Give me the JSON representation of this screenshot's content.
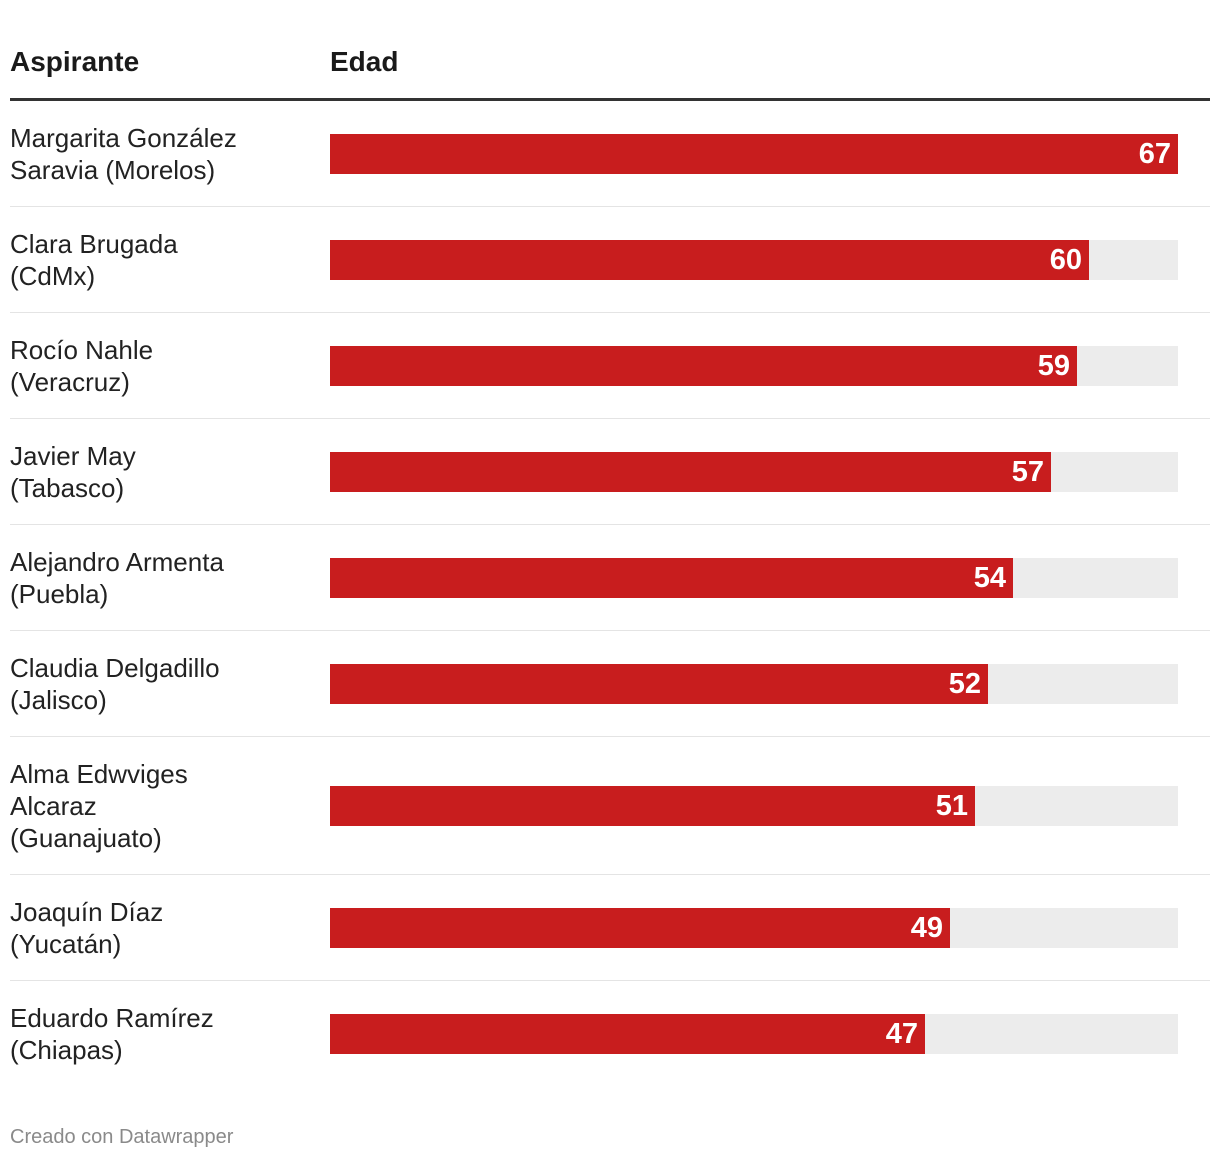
{
  "chart_data": {
    "type": "bar",
    "orientation": "horizontal",
    "columns": {
      "name": "Aspirante",
      "value": "Edad"
    },
    "categories": [
      "Margarita González\nSaravia (Morelos)",
      "Clara Brugada\n(CdMx)",
      "Rocío Nahle\n(Veracruz)",
      "Javier May\n(Tabasco)",
      "Alejandro Armenta\n(Puebla)",
      "Claudia Delgadillo\n(Jalisco)",
      "Alma Edwviges\nAlcaraz\n(Guanajuato)",
      "Joaquín Díaz\n(Yucatán)",
      "Eduardo Ramírez\n(Chiapas)"
    ],
    "values": [
      67,
      60,
      59,
      57,
      54,
      52,
      51,
      49,
      47
    ],
    "xlim": [
      0,
      67
    ],
    "bar_color": "#c81d1e",
    "track_color": "#ececec"
  },
  "footer": "Creado con Datawrapper"
}
